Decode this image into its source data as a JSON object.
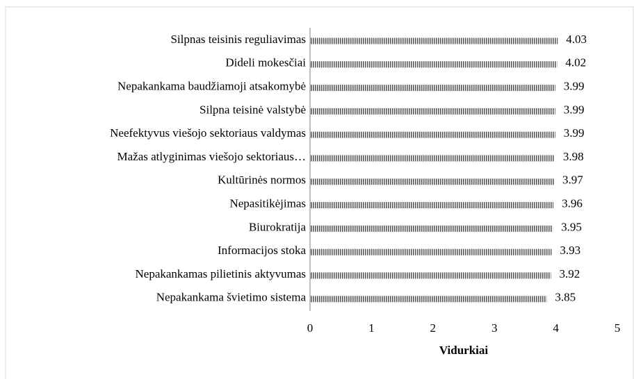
{
  "chart_data": {
    "type": "bar",
    "orientation": "horizontal",
    "categories": [
      "Silpnas teisinis reguliavimas",
      "Dideli mokesčiai",
      "Nepakankama baudžiamoji atsakomybė",
      "Silpna teisinė valstybė",
      "Neefektyvus viešojo sektoriaus valdymas",
      "Mažas atlyginimas viešojo sektoriaus…",
      "Kultūrinės normos",
      "Nepasitikėjimas",
      "Biurokratija",
      "Informacijos stoka",
      "Nepakankamas pilietinis aktyvumas",
      "Nepakankama švietimo sistema"
    ],
    "values": [
      4.03,
      4.02,
      3.99,
      3.99,
      3.99,
      3.98,
      3.97,
      3.96,
      3.95,
      3.93,
      3.92,
      3.85
    ],
    "color": "#595959",
    "pattern": "vertical-hatch",
    "xlabel": "Vidurkiai",
    "xlim": [
      0,
      5
    ],
    "xticks": [
      0,
      1,
      2,
      3,
      4,
      5
    ],
    "grid": false
  }
}
